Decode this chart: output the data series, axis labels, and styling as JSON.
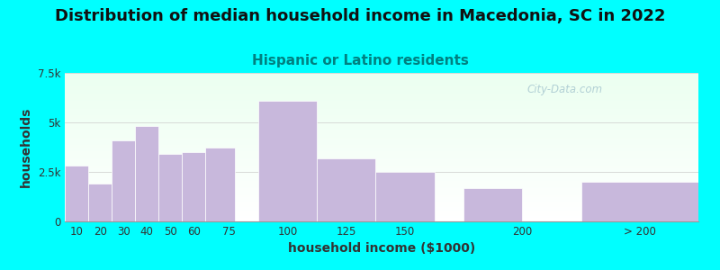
{
  "title": "Distribution of median household income in Macedonia, SC in 2022",
  "subtitle": "Hispanic or Latino residents",
  "xlabel": "household income ($1000)",
  "ylabel": "households",
  "background_color": "#00FFFF",
  "bar_color": "#C8B8DC",
  "bar_edge_color": "#C8B8DC",
  "categories": [
    "10",
    "20",
    "30",
    "40",
    "50",
    "60",
    "75",
    "100",
    "125",
    "150",
    "200",
    "> 200"
  ],
  "values": [
    2800,
    1900,
    4100,
    4800,
    3400,
    3500,
    3750,
    6100,
    3200,
    2500,
    1700,
    2000
  ],
  "bar_lefts": [
    5,
    15,
    25,
    35,
    45,
    55,
    65,
    87.5,
    112.5,
    137.5,
    175,
    225
  ],
  "bar_widths": [
    10,
    10,
    10,
    10,
    10,
    10,
    12.5,
    25,
    25,
    25,
    25,
    50
  ],
  "ylim": [
    0,
    7500
  ],
  "yticks": [
    0,
    2500,
    5000,
    7500
  ],
  "ytick_labels": [
    "0",
    "2.5k",
    "5k",
    "7.5k"
  ],
  "xtick_positions": [
    10,
    20,
    30,
    40,
    50,
    60,
    75,
    100,
    125,
    150,
    200
  ],
  "xtick_labels": [
    "10",
    "20",
    "30",
    "40",
    "50",
    "60",
    "75",
    "100",
    "125",
    "150",
    "200"
  ],
  "xlim": [
    5,
    275
  ],
  "title_fontsize": 13,
  "subtitle_fontsize": 11,
  "subtitle_color": "#008080",
  "axis_label_fontsize": 10,
  "tick_fontsize": 8.5,
  "watermark_text": "City-Data.com",
  "watermark_color": "#a8c8d0"
}
